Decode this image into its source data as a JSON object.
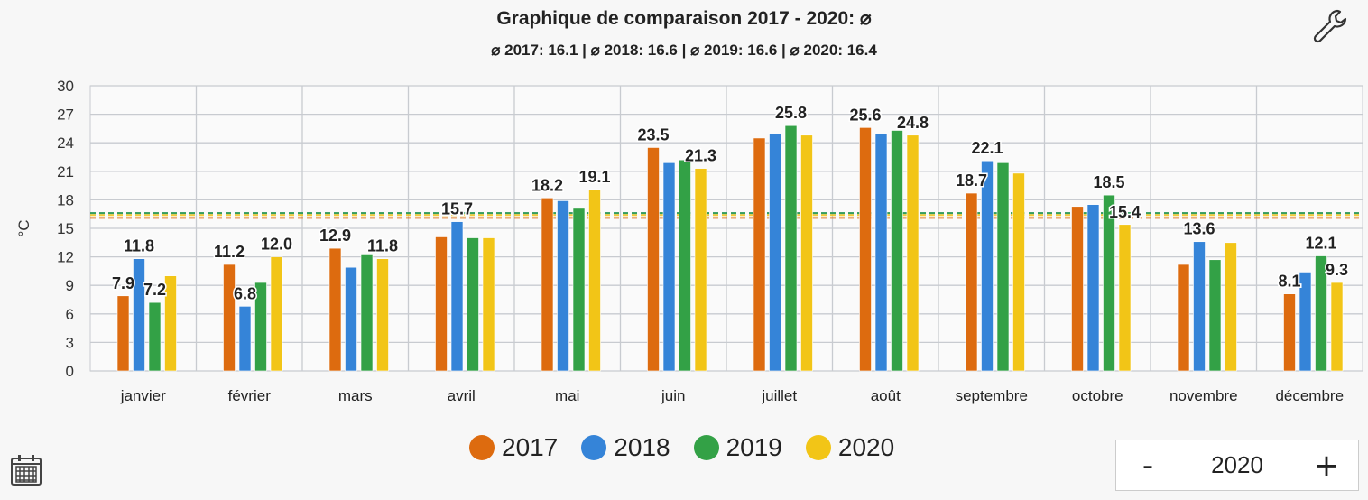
{
  "header": {
    "title": "Graphique de comparaison 2017 - 2020: ⌀",
    "subtitle": "⌀ 2017: 16.1 | ⌀ 2018: 16.6 | ⌀ 2019: 16.6 | ⌀ 2020: 16.4"
  },
  "icons": {
    "settings": "wrench-icon",
    "calendar": "calendar-icon"
  },
  "year_stepper": {
    "minus": "-",
    "value": "2020",
    "plus": "+"
  },
  "colors": {
    "2017": "#dd6b0f",
    "2018": "#3584d8",
    "2019": "#33a146",
    "2020": "#f2c517",
    "grid": "#c8cbd0"
  },
  "chart_data": {
    "type": "bar",
    "title": "Graphique de comparaison 2017 - 2020: ⌀",
    "subtitle": "⌀ 2017: 16.1 | ⌀ 2018: 16.6 | ⌀ 2019: 16.6 | ⌀ 2020: 16.4",
    "xlabel": "",
    "ylabel": "°C",
    "ylim": [
      0,
      30
    ],
    "yticks": [
      "0",
      "3",
      "6",
      "9",
      "12",
      "15",
      "18",
      "21",
      "24",
      "27",
      "30"
    ],
    "grid": true,
    "legend_position": "bottom",
    "categories": [
      "janvier",
      "février",
      "mars",
      "avril",
      "mai",
      "juin",
      "juillet",
      "août",
      "septembre",
      "octobre",
      "novembre",
      "décembre"
    ],
    "series": [
      {
        "name": "2017",
        "color": "#dd6b0f",
        "average": 16.1,
        "values": [
          7.9,
          11.2,
          12.9,
          14.1,
          18.2,
          23.5,
          24.5,
          25.6,
          18.7,
          17.3,
          11.2,
          8.1
        ],
        "labels": [
          "7.9",
          "11.2",
          "12.9",
          null,
          "18.2",
          "23.5",
          null,
          "25.6",
          "18.7",
          null,
          null,
          "8.1"
        ]
      },
      {
        "name": "2018",
        "color": "#3584d8",
        "average": 16.6,
        "values": [
          11.8,
          6.8,
          10.9,
          15.7,
          17.9,
          21.9,
          25.0,
          25.0,
          22.1,
          17.5,
          13.6,
          10.4
        ],
        "labels": [
          "11.8",
          "6.8",
          null,
          "15.7",
          null,
          null,
          null,
          null,
          "22.1",
          null,
          "13.6",
          null
        ]
      },
      {
        "name": "2019",
        "color": "#33a146",
        "average": 16.6,
        "values": [
          7.2,
          9.3,
          12.3,
          14.0,
          17.1,
          22.2,
          25.8,
          25.3,
          21.9,
          18.5,
          11.7,
          12.1
        ],
        "labels": [
          "7.2",
          null,
          null,
          null,
          null,
          null,
          "25.8",
          null,
          null,
          "18.5",
          null,
          "12.1"
        ]
      },
      {
        "name": "2020",
        "color": "#f2c517",
        "average": 16.4,
        "values": [
          10.0,
          12.0,
          11.8,
          14.0,
          19.1,
          21.3,
          24.8,
          24.8,
          20.8,
          15.4,
          13.5,
          9.3
        ],
        "labels": [
          null,
          "12.0",
          "11.8",
          null,
          "19.1",
          "21.3",
          null,
          "24.8",
          null,
          "15.4",
          null,
          "9.3"
        ]
      }
    ]
  }
}
